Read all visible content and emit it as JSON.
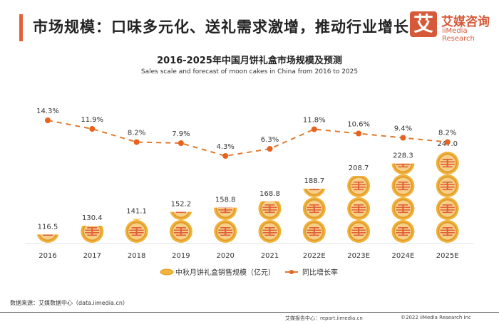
{
  "header": {
    "title": "市场规模：口味多元化、送礼需求激增，推动行业增长",
    "logo_mark": "艾",
    "logo_cn": "艾媒咨询",
    "logo_en": "iiMedia Research"
  },
  "chart_data": {
    "type": "bar",
    "title": "2016-2025年中国月饼礼盒市场规模及预测",
    "subtitle": "Sales scale and forecast of moon cakes in China from 2016 to 2025",
    "categories": [
      "2016",
      "2017",
      "2018",
      "2019",
      "2020",
      "2021",
      "2022E",
      "2023E",
      "2024E",
      "2025E"
    ],
    "series": [
      {
        "name": "中秋月饼礼盒销售规模（亿元）",
        "type": "pictograph-bar",
        "values": [
          116.5,
          130.4,
          141.1,
          152.2,
          158.8,
          168.8,
          188.7,
          208.7,
          228.3,
          247.0
        ],
        "labels": [
          "116.5",
          "130.4",
          "141.1",
          "152.2",
          "158.8",
          "168.8",
          "188.7",
          "208.7",
          "228.3",
          "247.0"
        ]
      },
      {
        "name": "同比增长率",
        "type": "line",
        "values": [
          14.3,
          11.9,
          8.2,
          7.9,
          4.3,
          6.3,
          11.8,
          10.6,
          9.4,
          8.2
        ],
        "labels": [
          "14.3%",
          "11.9%",
          "8.2%",
          "7.9%",
          "4.3%",
          "6.3%",
          "11.8%",
          "10.6%",
          "9.4%",
          "8.2%"
        ]
      }
    ],
    "legend": "bottom",
    "grid": false,
    "colors": {
      "coin": "#f0b43c",
      "coin_ring": "#e39a2a",
      "coin_inner": "#f7cf86",
      "coin_lines": "#e0603a",
      "line": "#e07a2e",
      "marker": "#e8621e"
    }
  },
  "footer": {
    "source": "数据来源：艾媒数据中心（data.iimedia.cn）",
    "report": "艾媒报告中心：report.iimedia.cn",
    "copyright": "©2022  iiMedia Research  Inc"
  }
}
